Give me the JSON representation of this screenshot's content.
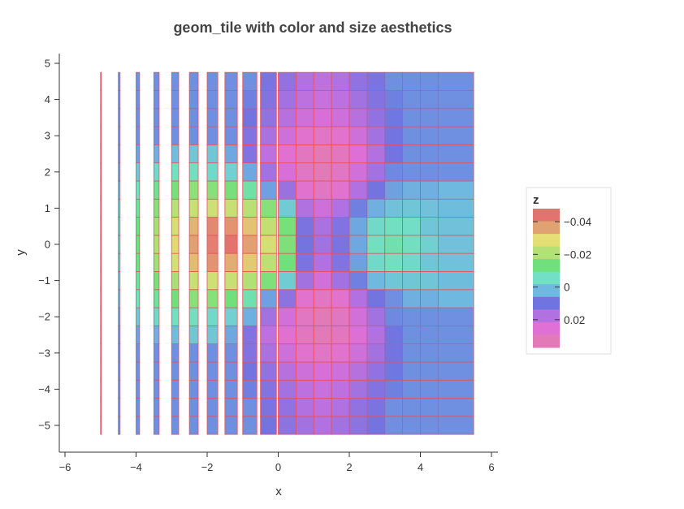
{
  "chart_data": {
    "type": "heatmap",
    "title": "geom_tile with color and size aesthetics",
    "xlabel": "x",
    "ylabel": "y",
    "xlim": [
      -6.2,
      6.2
    ],
    "ylim": [
      -5.75,
      5.25
    ],
    "x_ticks": [
      -6,
      -4,
      -2,
      0,
      2,
      4,
      6
    ],
    "x_tick_labels": [
      "−6",
      "−4",
      "−2",
      "0",
      "2",
      "4",
      "6"
    ],
    "y_ticks": [
      -5,
      -4,
      -3,
      -2,
      -1,
      0,
      1,
      2,
      3,
      4,
      5
    ],
    "y_tick_labels": [
      "−5",
      "−4",
      "−3",
      "−2",
      "−1",
      "0",
      "1",
      "2",
      "3",
      "4",
      "5"
    ],
    "tile_border_color": "#e8505b",
    "x": [
      -5.0,
      -4.5,
      -4.0,
      -3.5,
      -3.0,
      -2.5,
      -2.0,
      -1.5,
      -1.0,
      -0.5,
      0.0,
      0.5,
      1.0,
      1.5,
      2.0,
      2.5,
      3.0,
      3.5,
      4.0,
      4.5
    ],
    "tile_widths": [
      0.0,
      0.05,
      0.1,
      0.15,
      0.2,
      0.25,
      0.3,
      0.35,
      0.4,
      0.45,
      0.5,
      0.5,
      0.5,
      0.5,
      0.5,
      0.5,
      0.5,
      0.5,
      0.5,
      1.0
    ],
    "y": [
      -5.0,
      -4.5,
      -4.0,
      -3.5,
      -3.0,
      -2.5,
      -2.0,
      -1.5,
      -1.0,
      -0.5,
      0.0,
      0.5,
      1.0,
      1.5,
      2.0,
      2.5,
      3.0,
      3.5,
      4.0,
      4.5
    ],
    "z_note": "z values are a row-major grid z[row_y][col_x]",
    "z": [
      [
        0.008,
        0.008,
        0.008,
        0.008,
        0.008,
        0.008,
        0.008,
        0.008,
        0.008,
        0.012,
        0.015,
        0.018,
        0.02,
        0.018,
        0.015,
        0.012,
        0.008,
        0.008,
        0.008,
        0.008
      ],
      [
        0.008,
        0.008,
        0.008,
        0.008,
        0.008,
        0.008,
        0.008,
        0.008,
        0.008,
        0.013,
        0.016,
        0.02,
        0.022,
        0.02,
        0.016,
        0.013,
        0.008,
        0.008,
        0.008,
        0.008
      ],
      [
        0.008,
        0.008,
        0.008,
        0.008,
        0.008,
        0.008,
        0.008,
        0.008,
        0.01,
        0.014,
        0.018,
        0.022,
        0.024,
        0.022,
        0.018,
        0.014,
        0.01,
        0.008,
        0.008,
        0.008
      ],
      [
        0.008,
        0.008,
        0.008,
        0.008,
        0.008,
        0.008,
        0.008,
        0.008,
        0.012,
        0.016,
        0.021,
        0.025,
        0.027,
        0.025,
        0.021,
        0.016,
        0.011,
        0.008,
        0.008,
        0.008
      ],
      [
        0.008,
        0.008,
        0.008,
        0.008,
        0.008,
        0.008,
        0.008,
        0.008,
        0.014,
        0.019,
        0.025,
        0.031,
        0.033,
        0.031,
        0.025,
        0.018,
        0.012,
        0.008,
        0.008,
        0.008
      ],
      [
        0.008,
        0.008,
        0.006,
        0.004,
        0.002,
        0.0,
        0.0,
        0.005,
        0.014,
        0.022,
        0.03,
        0.035,
        0.037,
        0.035,
        0.028,
        0.02,
        0.012,
        0.008,
        0.008,
        0.008
      ],
      [
        0.008,
        0.006,
        0.0,
        -0.004,
        -0.006,
        -0.006,
        -0.004,
        -0.002,
        0.004,
        0.018,
        0.026,
        0.034,
        0.037,
        0.034,
        0.026,
        0.018,
        0.009,
        0.008,
        0.008,
        0.008
      ],
      [
        0.008,
        0.003,
        -0.006,
        -0.01,
        -0.014,
        -0.017,
        -0.017,
        -0.014,
        -0.008,
        0.006,
        0.015,
        0.031,
        0.034,
        0.031,
        0.02,
        0.012,
        0.008,
        0.004,
        0.004,
        0.003
      ],
      [
        0.008,
        0.0,
        -0.01,
        -0.015,
        -0.021,
        -0.026,
        -0.027,
        -0.026,
        -0.022,
        -0.016,
        -0.001,
        0.018,
        0.026,
        0.018,
        0.01,
        0.003,
        0.0,
        0.0,
        0.0,
        0.002
      ],
      [
        0.008,
        -0.002,
        -0.013,
        -0.02,
        -0.028,
        -0.036,
        -0.042,
        -0.038,
        -0.034,
        -0.024,
        -0.014,
        0.013,
        0.02,
        0.014,
        0.006,
        -0.004,
        -0.006,
        -0.004,
        0.0,
        0.001
      ],
      [
        0.008,
        -0.002,
        -0.014,
        -0.022,
        -0.032,
        -0.04,
        -0.046,
        -0.048,
        -0.04,
        -0.028,
        -0.016,
        0.012,
        0.018,
        0.013,
        0.005,
        -0.006,
        -0.008,
        -0.006,
        -0.002,
        0.001
      ],
      [
        0.008,
        -0.002,
        -0.013,
        -0.021,
        -0.029,
        -0.037,
        -0.044,
        -0.042,
        -0.035,
        -0.025,
        -0.015,
        0.013,
        0.019,
        0.014,
        0.005,
        -0.004,
        -0.006,
        -0.005,
        0.0,
        0.001
      ],
      [
        0.008,
        -0.001,
        -0.01,
        -0.017,
        -0.023,
        -0.026,
        -0.027,
        -0.026,
        -0.023,
        -0.017,
        -0.001,
        0.02,
        0.025,
        0.02,
        0.01,
        0.004,
        0.001,
        0.0,
        0.001,
        0.002
      ],
      [
        0.008,
        0.003,
        -0.006,
        -0.011,
        -0.015,
        -0.018,
        -0.017,
        -0.015,
        -0.009,
        0.006,
        0.017,
        0.031,
        0.034,
        0.031,
        0.02,
        0.012,
        0.006,
        0.004,
        0.004,
        0.003
      ],
      [
        0.008,
        0.006,
        0.0,
        -0.004,
        -0.006,
        -0.006,
        -0.004,
        -0.002,
        0.005,
        0.018,
        0.027,
        0.034,
        0.037,
        0.034,
        0.026,
        0.018,
        0.009,
        0.008,
        0.008,
        0.008
      ],
      [
        0.008,
        0.008,
        0.006,
        0.004,
        0.002,
        0.0,
        0.0,
        0.005,
        0.014,
        0.022,
        0.03,
        0.035,
        0.037,
        0.035,
        0.028,
        0.02,
        0.012,
        0.008,
        0.008,
        0.008
      ],
      [
        0.008,
        0.008,
        0.008,
        0.008,
        0.008,
        0.008,
        0.008,
        0.008,
        0.014,
        0.019,
        0.025,
        0.031,
        0.033,
        0.031,
        0.025,
        0.018,
        0.012,
        0.008,
        0.008,
        0.008
      ],
      [
        0.008,
        0.008,
        0.008,
        0.008,
        0.008,
        0.008,
        0.008,
        0.008,
        0.012,
        0.016,
        0.021,
        0.025,
        0.027,
        0.025,
        0.021,
        0.016,
        0.011,
        0.008,
        0.008,
        0.008
      ],
      [
        0.008,
        0.008,
        0.008,
        0.008,
        0.008,
        0.008,
        0.008,
        0.008,
        0.01,
        0.014,
        0.018,
        0.022,
        0.024,
        0.022,
        0.018,
        0.014,
        0.01,
        0.008,
        0.008,
        0.008
      ],
      [
        0.008,
        0.008,
        0.008,
        0.008,
        0.008,
        0.008,
        0.008,
        0.008,
        0.008,
        0.013,
        0.016,
        0.02,
        0.022,
        0.02,
        0.016,
        0.013,
        0.008,
        0.008,
        0.008,
        0.008
      ]
    ],
    "legend": {
      "title": "z",
      "placement": "right",
      "zlim": [
        -0.048,
        0.037
      ],
      "ticks": [
        -0.04,
        -0.02,
        0,
        0.02
      ],
      "tick_labels": [
        "−0.04",
        "−0.02",
        "0",
        "0.02"
      ],
      "colors": [
        "#e3736f",
        "#e1a272",
        "#e5de74",
        "#b4e076",
        "#6fe07c",
        "#72e0c4",
        "#6fb8e0",
        "#6f74e0",
        "#b271e0",
        "#e06fd6",
        "#e27ab8"
      ]
    },
    "grid": false
  }
}
